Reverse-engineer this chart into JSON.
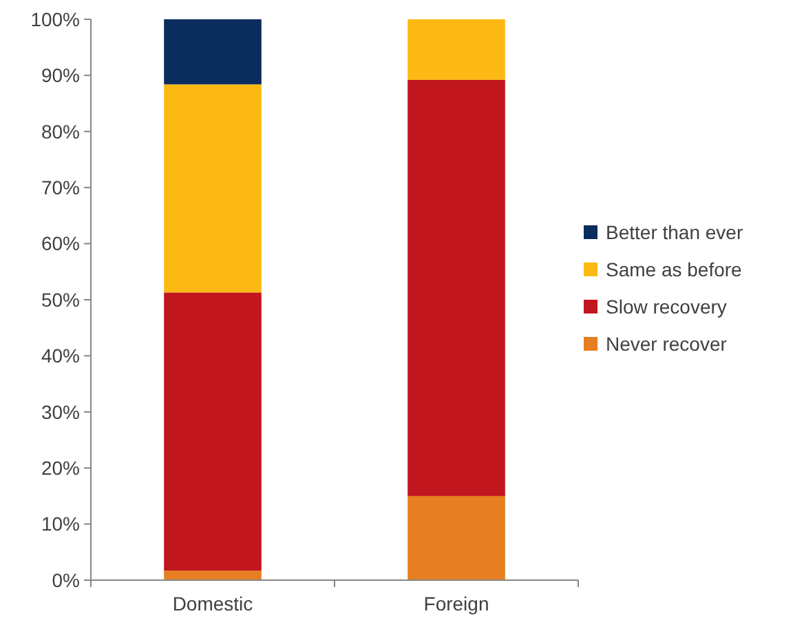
{
  "chart_data": {
    "type": "bar",
    "stacked": true,
    "categories": [
      "Domestic",
      "Foreign"
    ],
    "series": [
      {
        "name": "Never recover",
        "color": "#e67e22",
        "values": [
          1.7,
          15
        ]
      },
      {
        "name": "Slow recovery",
        "color": "#c1161e",
        "values": [
          49.6,
          74.2
        ]
      },
      {
        "name": "Same as before",
        "color": "#fdb913",
        "values": [
          37.1,
          10.8
        ]
      },
      {
        "name": "Better than ever",
        "color": "#0b2d5e",
        "values": [
          11.6,
          0
        ]
      }
    ],
    "ylim": [
      0,
      100
    ],
    "yticks": [
      {
        "value": 0,
        "label": "0%"
      },
      {
        "value": 10,
        "label": "10%"
      },
      {
        "value": 20,
        "label": "20%"
      },
      {
        "value": 30,
        "label": "30%"
      },
      {
        "value": 40,
        "label": "40%"
      },
      {
        "value": 50,
        "label": "50%"
      },
      {
        "value": 60,
        "label": "60%"
      },
      {
        "value": 70,
        "label": "70%"
      },
      {
        "value": 80,
        "label": "80%"
      },
      {
        "value": 90,
        "label": "90%"
      },
      {
        "value": 100,
        "label": "100%"
      }
    ],
    "grid": false,
    "legend": "right"
  }
}
